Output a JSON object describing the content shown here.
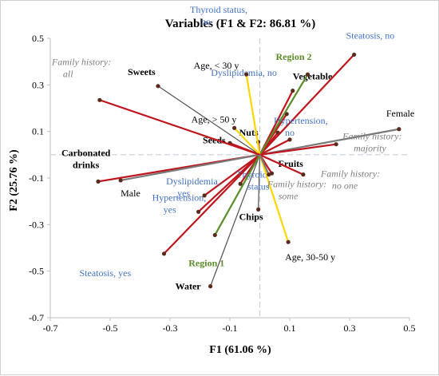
{
  "chart_data": {
    "type": "biplot",
    "title": "Variables (F1 & F2: 86.81 %)",
    "xlabel": "F1 (61.06 %)",
    "ylabel": "F2 (25.76 %)",
    "xlim": [
      -0.7,
      0.5
    ],
    "ylim": [
      -0.7,
      0.5
    ],
    "x_ticks": [
      "-0.7",
      "-0.5",
      "-0.3",
      "-0.1",
      "0.1",
      "0.3",
      "0.5"
    ],
    "y_ticks": [
      "-0.7",
      "-0.5",
      "-0.3",
      "-0.1",
      "0.1",
      "0.3",
      "0.5"
    ],
    "colors": {
      "dietary": "#c0141c",
      "family_history": "#7a7a7a",
      "sex": "#7a7a7a",
      "age": "#ffd700",
      "region": "#5b8c2a",
      "diet_item": "#505050",
      "dot": "#5a2a1a",
      "food_label": "#000000",
      "clinical_label": "#4472c4",
      "family_label": "#7f7f7f",
      "region_label": "#5b8c2a"
    },
    "vectors": [
      {
        "label": "Sweets",
        "x": -0.34,
        "y": 0.295,
        "line": "diet_item",
        "text": "food_label",
        "bold": true
      },
      {
        "label": "Vegetable",
        "x": 0.11,
        "y": 0.275,
        "line": "dietary",
        "text": "food_label",
        "bold": true
      },
      {
        "label": "Nuts",
        "x": -0.005,
        "y": 0.055,
        "line": "dietary",
        "text": "food_label",
        "bold": true
      },
      {
        "label": "Seeds",
        "x": -0.1,
        "y": 0.05,
        "line": "dietary",
        "text": "food_label",
        "bold": true
      },
      {
        "label": "Carbonated drinks",
        "x": -0.54,
        "y": -0.115,
        "line": "dietary",
        "text": "food_label",
        "bold": true
      },
      {
        "label": "Fruits",
        "x": 0.04,
        "y": -0.08,
        "line": "dietary",
        "text": "food_label",
        "bold": true
      },
      {
        "label": "Chips",
        "x": -0.005,
        "y": -0.235,
        "line": "diet_item",
        "text": "food_label",
        "bold": true
      },
      {
        "label": "Water",
        "x": -0.165,
        "y": -0.565,
        "line": "diet_item",
        "text": "food_label",
        "bold": true
      },
      {
        "label": "Thyroid status, no",
        "x": 0.06,
        "y": 0.095,
        "line": "dietary",
        "text": "clinical_label"
      },
      {
        "label": "Steatosis, no",
        "x": 0.315,
        "y": 0.43,
        "line": "dietary",
        "text": "clinical_label"
      },
      {
        "label": "Dyslipidemia, no",
        "x": 0.09,
        "y": 0.175,
        "line": "dietary",
        "text": "clinical_label"
      },
      {
        "label": "Hypertension, no",
        "x": 0.1,
        "y": 0.065,
        "line": "dietary",
        "text": "clinical_label"
      },
      {
        "label": "Dyslipidemia, yes",
        "x": -0.185,
        "y": -0.175,
        "line": "dietary",
        "text": "clinical_label"
      },
      {
        "label": "Hypertension, yes",
        "x": -0.205,
        "y": -0.245,
        "line": "dietary",
        "text": "clinical_label"
      },
      {
        "label": "Thyroid status",
        "x": -0.065,
        "y": -0.125,
        "line": "dietary",
        "text": "clinical_label"
      },
      {
        "label": "Steatosis, yes",
        "x": -0.32,
        "y": -0.425,
        "line": "dietary",
        "text": "clinical_label"
      },
      {
        "label": "Region 2",
        "x": 0.16,
        "y": 0.345,
        "line": "region",
        "text": "region_label",
        "bold": true
      },
      {
        "label": "Region 1",
        "x": -0.15,
        "y": -0.345,
        "line": "region",
        "text": "region_label",
        "bold": true
      },
      {
        "label": "Age, < 30 y",
        "x": -0.045,
        "y": 0.345,
        "line": "age",
        "text": "food_label"
      },
      {
        "label": "Age, > 50 y",
        "x": -0.085,
        "y": 0.115,
        "line": "age",
        "text": "food_label"
      },
      {
        "label": "Age, 30-50 y",
        "x": 0.095,
        "y": -0.375,
        "line": "age",
        "text": "food_label"
      },
      {
        "label": "Female",
        "x": 0.465,
        "y": 0.11,
        "line": "sex",
        "text": "food_label"
      },
      {
        "label": "Male",
        "x": -0.465,
        "y": -0.11,
        "line": "sex",
        "text": "food_label"
      },
      {
        "label": "Family history: all",
        "x": -0.535,
        "y": 0.235,
        "line": "dietary",
        "text": "family_label",
        "italic": true
      },
      {
        "label": "Family history: majority",
        "x": 0.255,
        "y": 0.045,
        "line": "dietary",
        "text": "family_label",
        "italic": true
      },
      {
        "label": "Family history: no one",
        "x": 0.145,
        "y": -0.085,
        "line": "dietary",
        "text": "family_label",
        "italic": true
      },
      {
        "label": "Family history: some",
        "x": 0.03,
        "y": -0.085,
        "line": "family_history",
        "text": "family_label",
        "italic": true
      }
    ]
  }
}
